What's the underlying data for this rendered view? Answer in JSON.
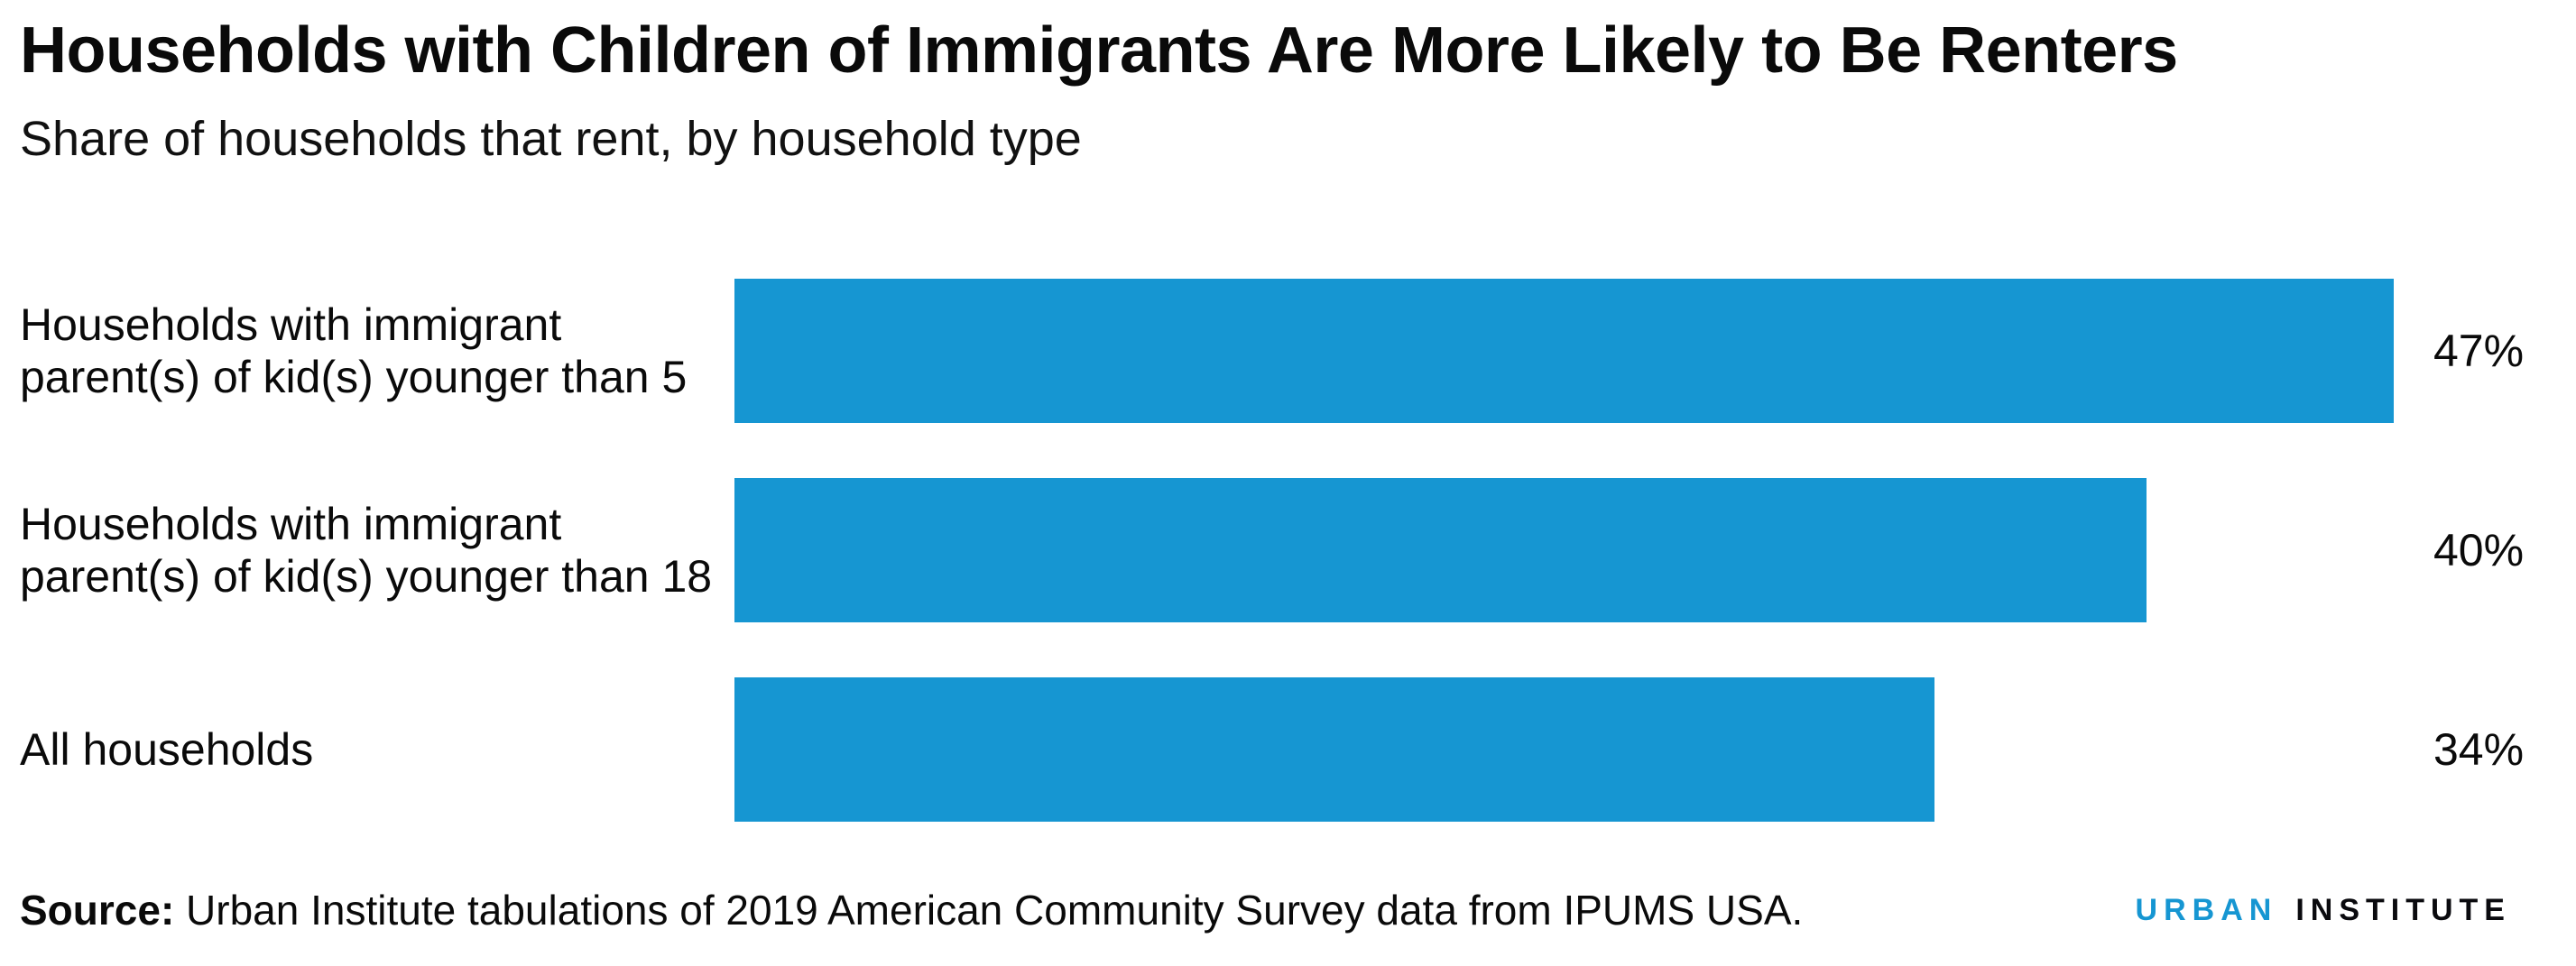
{
  "chart_data": {
    "type": "bar",
    "orientation": "horizontal",
    "title": "Households with Children of Immigrants Are More Likely to Be Renters",
    "subtitle": "Share of households that rent, by household type",
    "categories": [
      "Households with immigrant parent(s) of kid(s) younger than 5",
      "Households with immigrant parent(s) of kid(s) younger than 18",
      "All households"
    ],
    "values": [
      47,
      40,
      34
    ],
    "value_labels": [
      "47%",
      "40%",
      "34%"
    ],
    "xlabel": "",
    "ylabel": "",
    "xlim": [
      0,
      47
    ],
    "grid": false,
    "legend": "none",
    "bar_color": "#1696d2",
    "value_label_position": "right-of-bar"
  },
  "footer": {
    "source_label": "Source:",
    "source_text": " Urban Institute tabulations of 2019 American Community Survey data from IPUMS USA.",
    "logo_word1": "URBAN",
    "logo_word2": "INSTITUTE"
  },
  "colors": {
    "bar_blue": "#1696d2",
    "logo_urban_blue": "#1696d2",
    "logo_institute_black": "#0a0a0e",
    "text_black": "#0a0a0a",
    "background": "#ffffff"
  }
}
